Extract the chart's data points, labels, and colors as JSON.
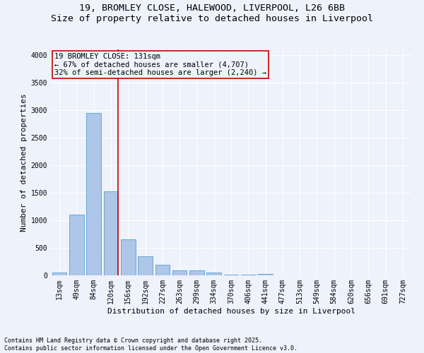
{
  "title_line1": "19, BROMLEY CLOSE, HALEWOOD, LIVERPOOL, L26 6BB",
  "title_line2": "Size of property relative to detached houses in Liverpool",
  "xlabel": "Distribution of detached houses by size in Liverpool",
  "ylabel": "Number of detached properties",
  "categories": [
    "13sqm",
    "49sqm",
    "84sqm",
    "120sqm",
    "156sqm",
    "192sqm",
    "227sqm",
    "263sqm",
    "299sqm",
    "334sqm",
    "370sqm",
    "406sqm",
    "441sqm",
    "477sqm",
    "513sqm",
    "549sqm",
    "584sqm",
    "620sqm",
    "656sqm",
    "691sqm",
    "727sqm"
  ],
  "values": [
    55,
    1100,
    2950,
    1530,
    650,
    340,
    195,
    90,
    85,
    50,
    15,
    10,
    30,
    5,
    0,
    0,
    0,
    0,
    0,
    0,
    0
  ],
  "bar_color": "#aec6e8",
  "bar_edge_color": "#5a9fd4",
  "vline_index": 3,
  "vline_color": "#cc0000",
  "annotation_title": "19 BROMLEY CLOSE: 131sqm",
  "annotation_line2": "← 67% of detached houses are smaller (4,707)",
  "annotation_line3": "32% of semi-detached houses are larger (2,240) →",
  "annotation_box_color": "#cc0000",
  "ylim": [
    0,
    4100
  ],
  "yticks": [
    0,
    500,
    1000,
    1500,
    2000,
    2500,
    3000,
    3500,
    4000
  ],
  "footnote_line1": "Contains HM Land Registry data © Crown copyright and database right 2025.",
  "footnote_line2": "Contains public sector information licensed under the Open Government Licence v3.0.",
  "background_color": "#eef2fb",
  "grid_color": "#ffffff",
  "title_fontsize": 9.5,
  "axis_label_fontsize": 8,
  "tick_fontsize": 7,
  "annotation_fontsize": 7.5,
  "footnote_fontsize": 6
}
